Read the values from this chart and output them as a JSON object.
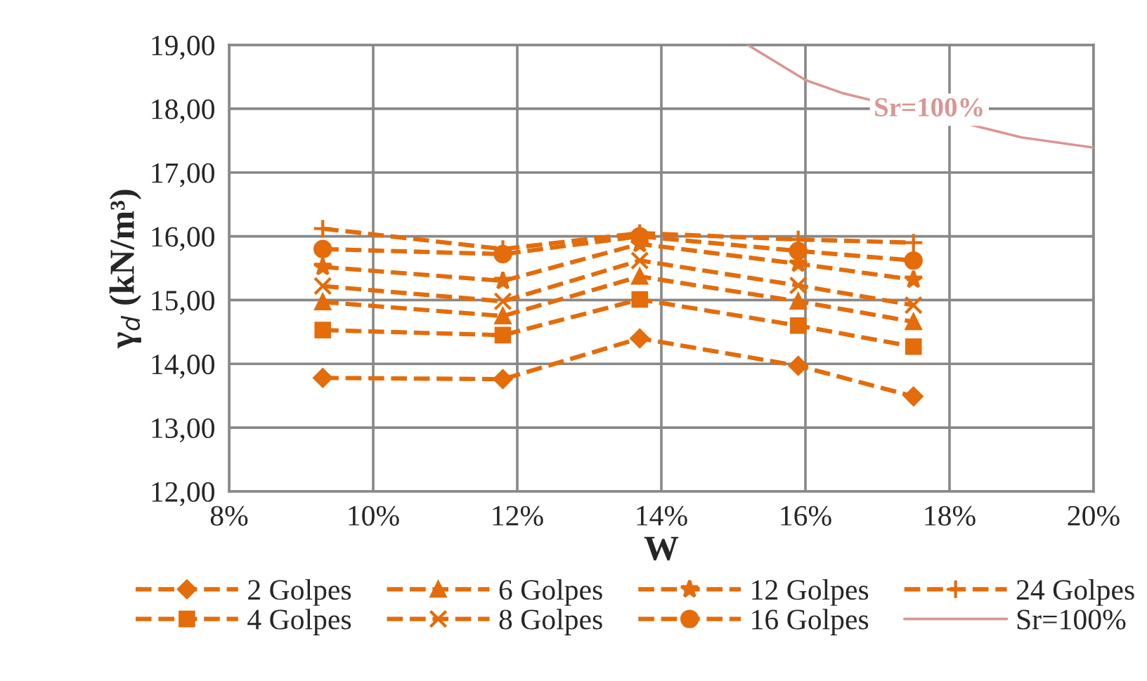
{
  "chart_data": {
    "type": "line",
    "xlabel": "W",
    "ylabel": "γ$_{d}$ (kN/m³)",
    "xlim": [
      0.08,
      0.2
    ],
    "ylim": [
      12,
      19
    ],
    "xticks": [
      {
        "value": 0.08,
        "label": "8%"
      },
      {
        "value": 0.1,
        "label": "10%"
      },
      {
        "value": 0.12,
        "label": "12%"
      },
      {
        "value": 0.14,
        "label": "14%"
      },
      {
        "value": 0.16,
        "label": "16%"
      },
      {
        "value": 0.18,
        "label": "18%"
      },
      {
        "value": 0.2,
        "label": "20%"
      }
    ],
    "yticks": [
      {
        "value": 12,
        "label": "12,00"
      },
      {
        "value": 13,
        "label": "13,00"
      },
      {
        "value": 14,
        "label": "14,00"
      },
      {
        "value": 15,
        "label": "15,00"
      },
      {
        "value": 16,
        "label": "16,00"
      },
      {
        "value": 17,
        "label": "17,00"
      },
      {
        "value": 18,
        "label": "18,00"
      },
      {
        "value": 19,
        "label": "19,00"
      }
    ],
    "grid": true,
    "legend": "bottom",
    "line_style": "dashed",
    "x": [
      0.093,
      0.118,
      0.137,
      0.159,
      0.175
    ],
    "series": [
      {
        "name": "2 Golpes",
        "color": "#e46c0a",
        "marker": "diamond",
        "values": [
          13.78,
          13.76,
          14.4,
          13.97,
          13.49
        ]
      },
      {
        "name": "4 Golpes",
        "color": "#e46c0a",
        "marker": "square",
        "values": [
          14.53,
          14.45,
          15.01,
          14.6,
          14.27
        ]
      },
      {
        "name": "6 Golpes",
        "color": "#e46c0a",
        "marker": "triangle",
        "values": [
          14.97,
          14.75,
          15.37,
          14.98,
          14.66
        ]
      },
      {
        "name": "8 Golpes",
        "color": "#e46c0a",
        "marker": "cross",
        "values": [
          15.22,
          14.98,
          15.62,
          15.23,
          14.92
        ]
      },
      {
        "name": "12 Golpes",
        "color": "#e46c0a",
        "marker": "star",
        "values": [
          15.52,
          15.3,
          15.88,
          15.57,
          15.32
        ]
      },
      {
        "name": "16 Golpes",
        "color": "#e46c0a",
        "marker": "circle",
        "values": [
          15.8,
          15.72,
          16.0,
          15.77,
          15.62
        ]
      },
      {
        "name": "24 Golpes",
        "color": "#e46c0a",
        "marker": "plus",
        "values": [
          16.12,
          15.8,
          16.05,
          15.95,
          15.9
        ]
      },
      {
        "name": "Sr=100%",
        "color": "#d99694",
        "marker": "none",
        "line_style": "solid",
        "x": [
          0.152,
          0.16,
          0.165,
          0.19,
          0.2
        ],
        "values": [
          19.0,
          18.45,
          18.25,
          17.55,
          17.39
        ]
      }
    ],
    "annotations": [
      "Sr=100%"
    ]
  }
}
